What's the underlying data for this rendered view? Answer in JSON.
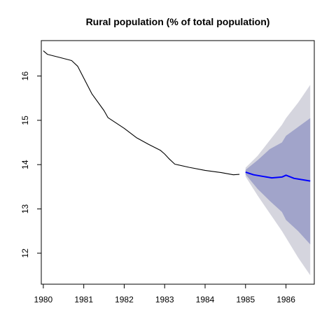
{
  "chart_data": {
    "type": "line",
    "title": "Rural population (% of total population)",
    "xlabel": "",
    "ylabel": "",
    "xlim": [
      1979.95,
      1986.7
    ],
    "ylim": [
      11.3,
      16.8
    ],
    "x_ticks": [
      1980,
      1981,
      1982,
      1983,
      1984,
      1985,
      1986
    ],
    "x_tick_labels": [
      "1980",
      "1981",
      "1982",
      "1983",
      "1984",
      "1985",
      "1986"
    ],
    "y_ticks": [
      12,
      13,
      14,
      15,
      16
    ],
    "y_tick_labels": [
      "12",
      "13",
      "14",
      "15",
      "16"
    ],
    "grid": false,
    "legend": "none",
    "series": [
      {
        "role": "history",
        "color": "#000000",
        "x": [
          1980.0,
          1980.1,
          1980.4,
          1980.7,
          1980.85,
          1981.2,
          1981.5,
          1981.6,
          1982.0,
          1982.3,
          1982.6,
          1982.9,
          1983.0,
          1983.1,
          1983.25,
          1983.6,
          1984.0,
          1984.4,
          1984.7,
          1984.85
        ],
        "y": [
          16.57,
          16.49,
          16.42,
          16.35,
          16.22,
          15.6,
          15.22,
          15.06,
          14.82,
          14.61,
          14.46,
          14.32,
          14.24,
          14.14,
          14.01,
          13.94,
          13.87,
          13.82,
          13.77,
          13.78
        ]
      },
      {
        "role": "forecast",
        "color": "#0000ff",
        "x": [
          1985.0,
          1985.2,
          1985.45,
          1985.65,
          1985.9,
          1986.0,
          1986.2,
          1986.6
        ],
        "y": [
          13.83,
          13.77,
          13.73,
          13.7,
          13.72,
          13.76,
          13.69,
          13.63
        ]
      }
    ],
    "intervals": [
      {
        "level": "outer",
        "color": "#d5d5de",
        "x": [
          1985.0,
          1985.3,
          1985.6,
          1985.9,
          1986.0,
          1986.3,
          1986.6
        ],
        "upper": [
          13.93,
          14.2,
          14.55,
          14.9,
          15.05,
          15.4,
          15.8
        ],
        "lower": [
          13.73,
          13.3,
          12.9,
          12.5,
          12.35,
          11.9,
          11.5
        ]
      },
      {
        "level": "inner",
        "color": "#a1a4ca",
        "x": [
          1985.0,
          1985.3,
          1985.6,
          1985.9,
          1986.0,
          1986.3,
          1986.6
        ],
        "upper": [
          13.88,
          14.1,
          14.35,
          14.5,
          14.65,
          14.85,
          15.05
        ],
        "lower": [
          13.78,
          13.45,
          13.18,
          12.93,
          12.75,
          12.5,
          12.2
        ]
      }
    ]
  }
}
